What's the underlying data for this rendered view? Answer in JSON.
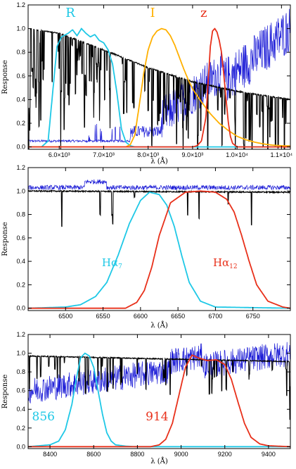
{
  "chart_data": [
    {
      "type": "line",
      "xlabel": "λ (Å)",
      "ylabel": "Response",
      "xlim": [
        5300,
        11200
      ],
      "ylim": [
        -0.02,
        1.2
      ],
      "x_ticks": [
        {
          "v": 6000,
          "label": "6.0×10³"
        },
        {
          "v": 7000,
          "label": "7.0×10³"
        },
        {
          "v": 8000,
          "label": "8.0×10³"
        },
        {
          "v": 9000,
          "label": "9.0×10³"
        },
        {
          "v": 10000,
          "label": "1.0×10⁴"
        },
        {
          "v": 11000,
          "label": "1.1×10⁴"
        }
      ],
      "y_ticks": [
        {
          "v": 0.0,
          "label": "0.0"
        },
        {
          "v": 0.2,
          "label": "0.2"
        },
        {
          "v": 0.4,
          "label": "0.4"
        },
        {
          "v": 0.6,
          "label": "0.6"
        },
        {
          "v": 0.8,
          "label": "0.8"
        },
        {
          "v": 1.0,
          "label": "1.0"
        },
        {
          "v": 1.2,
          "label": "1.2"
        }
      ],
      "series": [
        {
          "key": "R",
          "name": "R",
          "color": "#1ec8e6",
          "x": [
            5300,
            5600,
            5750,
            5850,
            5950,
            6050,
            6200,
            6300,
            6400,
            6500,
            6600,
            6700,
            6800,
            6900,
            7000,
            7100,
            7200,
            7300,
            7400,
            7500,
            7600,
            7700,
            7800,
            8000,
            11200
          ],
          "y": [
            0,
            0,
            0.05,
            0.45,
            0.85,
            0.93,
            0.96,
            0.99,
            0.94,
            1.0,
            0.96,
            0.93,
            0.95,
            0.9,
            0.88,
            0.82,
            0.7,
            0.45,
            0.15,
            0.04,
            0.01,
            0,
            0,
            0,
            0
          ]
        },
        {
          "key": "I",
          "name": "I",
          "color": "#ffb000",
          "x": [
            5300,
            7500,
            7600,
            7700,
            7800,
            7900,
            8000,
            8100,
            8200,
            8300,
            8400,
            8500,
            8600,
            8700,
            8800,
            8900,
            9000,
            9200,
            9400,
            9600,
            9800,
            10000,
            10200,
            10400,
            10600,
            10800,
            11000,
            11200
          ],
          "y": [
            0,
            0,
            0.02,
            0.1,
            0.35,
            0.62,
            0.82,
            0.93,
            0.98,
            1.0,
            0.99,
            0.94,
            0.86,
            0.76,
            0.66,
            0.57,
            0.49,
            0.38,
            0.28,
            0.2,
            0.14,
            0.09,
            0.06,
            0.04,
            0.025,
            0.015,
            0.01,
            0.008
          ]
        },
        {
          "key": "z",
          "name": "z",
          "color": "#e8301a",
          "x": [
            5300,
            9000,
            9100,
            9200,
            9300,
            9350,
            9400,
            9450,
            9500,
            9550,
            9600,
            9650,
            9700,
            9750,
            9800,
            9850,
            9900,
            10000,
            11200
          ],
          "y": [
            0,
            0,
            0.01,
            0.05,
            0.25,
            0.55,
            0.85,
            0.98,
            1.0,
            0.97,
            0.9,
            0.8,
            0.62,
            0.42,
            0.22,
            0.09,
            0.03,
            0,
            0
          ]
        }
      ],
      "continuum": {
        "x": [
          5300,
          6000,
          7000,
          8000,
          9000,
          10000,
          11200
        ],
        "y": [
          1.0,
          0.96,
          0.82,
          0.67,
          0.55,
          0.47,
          0.4
        ]
      },
      "band_labels": [
        {
          "text": "R",
          "x": 6250,
          "y": 1.1,
          "color": "#1ec8e6"
        },
        {
          "text": "I",
          "x": 8100,
          "y": 1.1,
          "color": "#ffb000"
        },
        {
          "text": "z",
          "x": 9250,
          "y": 1.1,
          "color": "#e8301a"
        }
      ]
    },
    {
      "type": "line",
      "xlabel": "λ (Å)",
      "ylabel": "Response",
      "xlim": [
        6450,
        6800
      ],
      "ylim": [
        -0.02,
        1.2
      ],
      "x_ticks": [
        {
          "v": 6500,
          "label": "6500"
        },
        {
          "v": 6550,
          "label": "6550"
        },
        {
          "v": 6600,
          "label": "6600"
        },
        {
          "v": 6650,
          "label": "6650"
        },
        {
          "v": 6700,
          "label": "6700"
        },
        {
          "v": 6750,
          "label": "6750"
        }
      ],
      "y_ticks": [
        {
          "v": 0.0,
          "label": "0.0"
        },
        {
          "v": 0.2,
          "label": "0.2"
        },
        {
          "v": 0.4,
          "label": "0.4"
        },
        {
          "v": 0.6,
          "label": "0.6"
        },
        {
          "v": 0.8,
          "label": "0.8"
        },
        {
          "v": 1.0,
          "label": "1.0"
        },
        {
          "v": 1.2,
          "label": "1.2"
        }
      ],
      "series": [
        {
          "key": "Ha7",
          "name": "Hα₇",
          "color": "#1ec8e6",
          "x": [
            6450,
            6500,
            6520,
            6540,
            6555,
            6570,
            6585,
            6600,
            6612,
            6625,
            6635,
            6645,
            6655,
            6665,
            6680,
            6700,
            6800
          ],
          "y": [
            0,
            0.01,
            0.03,
            0.1,
            0.22,
            0.45,
            0.72,
            0.92,
            0.99,
            0.97,
            0.88,
            0.7,
            0.45,
            0.22,
            0.06,
            0.01,
            0
          ]
        },
        {
          "key": "Ha12",
          "name": "Hα₁₂",
          "color": "#e8301a",
          "x": [
            6450,
            6580,
            6595,
            6605,
            6615,
            6625,
            6640,
            6660,
            6680,
            6700,
            6715,
            6725,
            6735,
            6745,
            6755,
            6770,
            6790,
            6800
          ],
          "y": [
            0,
            0,
            0.05,
            0.15,
            0.35,
            0.62,
            0.9,
            0.99,
            1.0,
            0.99,
            0.93,
            0.82,
            0.62,
            0.4,
            0.2,
            0.06,
            0.01,
            0
          ]
        }
      ],
      "continuum": {
        "x": [
          6450,
          6800
        ],
        "y": [
          1.0,
          0.99
        ]
      },
      "band_labels": [
        {
          "text": "Hα",
          "sub": "7",
          "x": 6562,
          "y": 0.36,
          "color": "#1ec8e6"
        },
        {
          "text": "Hα",
          "sub": "12",
          "x": 6713,
          "y": 0.36,
          "color": "#e8301a"
        }
      ]
    },
    {
      "type": "line",
      "xlabel": "λ (Å)",
      "ylabel": "Response",
      "xlim": [
        8300,
        9500
      ],
      "ylim": [
        -0.02,
        1.2
      ],
      "x_ticks": [
        {
          "v": 8400,
          "label": "8400"
        },
        {
          "v": 8600,
          "label": "8600"
        },
        {
          "v": 8800,
          "label": "8800"
        },
        {
          "v": 9000,
          "label": "9000"
        },
        {
          "v": 9200,
          "label": "9200"
        },
        {
          "v": 9400,
          "label": "9400"
        }
      ],
      "y_ticks": [
        {
          "v": 0.0,
          "label": "0.0"
        },
        {
          "v": 0.2,
          "label": "0.2"
        },
        {
          "v": 0.4,
          "label": "0.4"
        },
        {
          "v": 0.6,
          "label": "0.6"
        },
        {
          "v": 0.8,
          "label": "0.8"
        },
        {
          "v": 1.0,
          "label": "1.0"
        },
        {
          "v": 1.2,
          "label": "1.2"
        }
      ],
      "series": [
        {
          "key": "F856",
          "name": "856",
          "color": "#1ec8e6",
          "x": [
            8300,
            8400,
            8440,
            8470,
            8500,
            8520,
            8540,
            8560,
            8580,
            8600,
            8620,
            8640,
            8660,
            8680,
            8700,
            8750,
            8800,
            9500
          ],
          "y": [
            0,
            0.02,
            0.06,
            0.18,
            0.45,
            0.72,
            0.95,
            1.0,
            0.97,
            0.85,
            0.6,
            0.35,
            0.15,
            0.06,
            0.02,
            0.005,
            0,
            0
          ]
        },
        {
          "key": "F914",
          "name": "914",
          "color": "#e8301a",
          "x": [
            8300,
            8860,
            8900,
            8930,
            8960,
            8990,
            9020,
            9050,
            9080,
            9120,
            9160,
            9200,
            9230,
            9260,
            9290,
            9320,
            9360,
            9400,
            9500
          ],
          "y": [
            0,
            0,
            0.02,
            0.08,
            0.25,
            0.55,
            0.85,
            0.98,
            0.95,
            0.92,
            0.93,
            0.88,
            0.72,
            0.48,
            0.25,
            0.1,
            0.03,
            0.01,
            0
          ]
        }
      ],
      "continuum": {
        "x": [
          8300,
          9500
        ],
        "y": [
          0.97,
          0.91
        ]
      },
      "band_labels": [
        {
          "text": "856",
          "x": 8370,
          "y": 0.28,
          "color": "#1ec8e6"
        },
        {
          "text": "914",
          "x": 8890,
          "y": 0.28,
          "color": "#e8301a"
        }
      ]
    }
  ],
  "colors": {
    "stellar_spectrum": "#000000",
    "observed_spectrum": "#1a1ad6",
    "frame": "#000000"
  }
}
